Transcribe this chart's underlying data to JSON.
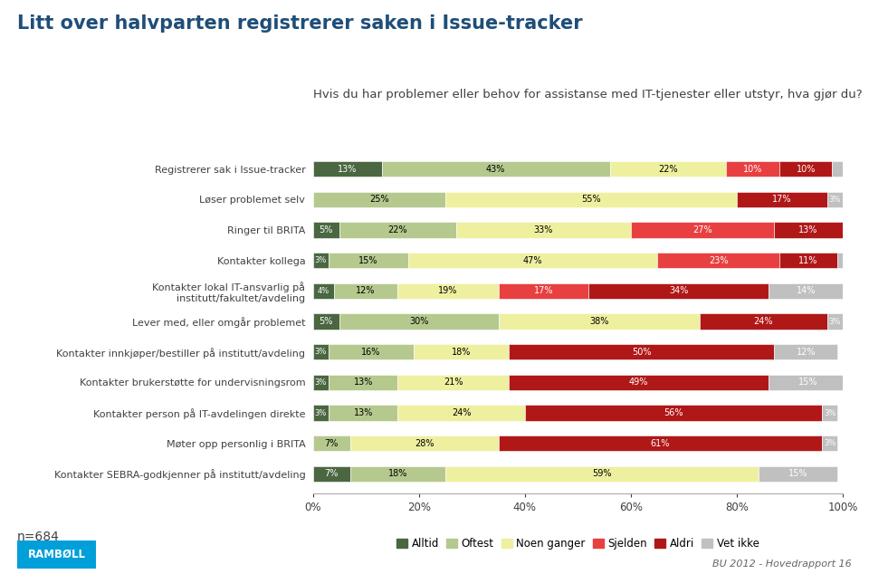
{
  "title": "Litt over halvparten registrerer saken i Issue-tracker",
  "subtitle": "Hvis du har problemer eller behov for assistanse med IT-tjenester eller utstyr, hva gjør du?",
  "n_label": "n=684",
  "footer": "BU 2012 - Hovedrapport 16",
  "categories": [
    "Registrerer sak i Issue-tracker",
    "Løser problemet selv",
    "Ringer til BRITA",
    "Kontakter kollega",
    "Kontakter lokal IT-ansvarlig på\ninstitutt/fakultet/avdeling",
    "Lever med, eller omgår problemet",
    "Kontakter innkjøper/bestiller på institutt/avdeling",
    "Kontakter brukerstøtte for undervisningsrom",
    "Kontakter person på IT-avdelingen direkte",
    "Møter opp personlig i BRITA",
    "Kontakter SEBRA-godkjenner på institutt/avdeling"
  ],
  "series": {
    "Alltid": [
      13,
      0,
      5,
      3,
      4,
      5,
      3,
      3,
      3,
      0,
      7
    ],
    "Oftest": [
      43,
      25,
      22,
      15,
      12,
      30,
      16,
      13,
      13,
      7,
      18
    ],
    "Noen ganger": [
      22,
      55,
      33,
      47,
      19,
      38,
      18,
      21,
      24,
      28,
      59
    ],
    "Sjelden": [
      10,
      0,
      27,
      23,
      17,
      0,
      0,
      0,
      0,
      0,
      0
    ],
    "Aldri": [
      10,
      17,
      13,
      11,
      34,
      24,
      50,
      49,
      56,
      61,
      0
    ],
    "Vet ikke": [
      2,
      3,
      1,
      1,
      14,
      3,
      12,
      15,
      3,
      3,
      15
    ]
  },
  "colors": {
    "Alltid": "#4a6741",
    "Oftest": "#b5c98e",
    "Noen ganger": "#eef0a0",
    "Sjelden": "#e84040",
    "Aldri": "#b01818",
    "Vet ikke": "#c0c0c0"
  },
  "legend_order": [
    "Alltid",
    "Oftest",
    "Noen ganger",
    "Sjelden",
    "Aldri",
    "Vet ikke"
  ],
  "bar_height": 0.52,
  "figsize": [
    9.6,
    6.34
  ],
  "dpi": 100,
  "bg_color": "#ffffff",
  "title_color": "#1f4e79",
  "subtitle_color": "#404040",
  "axis_label_color": "#404040",
  "tick_label_fontsize": 8.0,
  "bar_label_fontsize": 7.0,
  "title_fontsize": 15,
  "subtitle_fontsize": 9.5
}
